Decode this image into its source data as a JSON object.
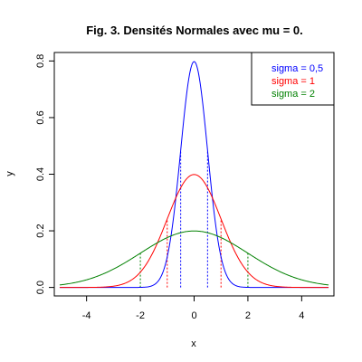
{
  "chart_data": {
    "type": "line",
    "title": "Fig. 3. Densités Normales avec mu = 0.",
    "xlabel": "x",
    "ylabel": "y",
    "xlim": [
      -5.2,
      5.2
    ],
    "ylim": [
      -0.03,
      0.83
    ],
    "xticks": [
      -4,
      -2,
      0,
      2,
      4
    ],
    "xtick_labels": [
      "-4",
      "-2",
      "0",
      "2",
      "4"
    ],
    "yticks": [
      0.0,
      0.2,
      0.4,
      0.6,
      0.8
    ],
    "ytick_labels": [
      "0.0",
      "0.2",
      "0.4",
      "0.6",
      "0.8"
    ],
    "grid": false,
    "legend_position": "top-right",
    "series": [
      {
        "name": "sigma = 0,5",
        "mu": 0,
        "sigma": 0.5,
        "x_range": [
          -5,
          5
        ],
        "color": "#0000ff"
      },
      {
        "name": "sigma = 1",
        "mu": 0,
        "sigma": 1,
        "x_range": [
          -5,
          5
        ],
        "color": "#ff0000"
      },
      {
        "name": "sigma = 2",
        "mu": 0,
        "sigma": 2,
        "x_range": [
          -5,
          5
        ],
        "color": "#008000"
      }
    ],
    "reference_lines": [
      {
        "x": -0.5,
        "y": 0.484,
        "color": "#0000ff",
        "style": "dotted"
      },
      {
        "x": 0.5,
        "y": 0.484,
        "color": "#0000ff",
        "style": "dotted"
      },
      {
        "x": -1,
        "y": 0.242,
        "color": "#ff0000",
        "style": "dotted"
      },
      {
        "x": 1,
        "y": 0.242,
        "color": "#ff0000",
        "style": "dotted"
      },
      {
        "x": -2,
        "y": 0.121,
        "color": "#008000",
        "style": "dotted"
      },
      {
        "x": 2,
        "y": 0.121,
        "color": "#008000",
        "style": "dotted"
      }
    ]
  }
}
